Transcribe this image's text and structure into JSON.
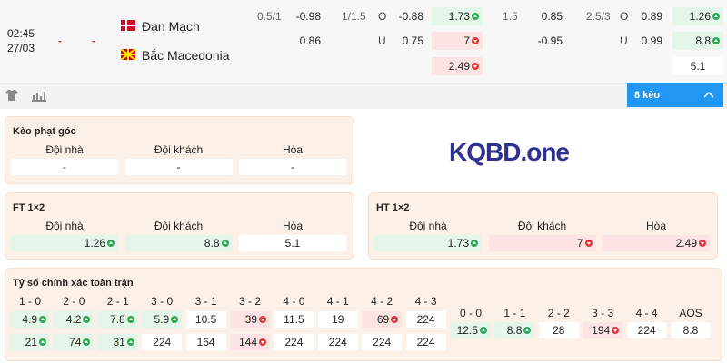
{
  "match": {
    "time": "02:45",
    "date": "27/03",
    "home_score": "-",
    "away_score": "-",
    "home_team": "Đan Mạch",
    "away_team": "Bắc Macedonia",
    "handicap": {
      "line": "0.5/1",
      "home": "-0.98",
      "away": "0.86"
    },
    "over_under": {
      "line": "1/1.5",
      "over_label": "O",
      "over": "-0.88",
      "under_label": "U",
      "under": "0.75"
    },
    "x12_a": [
      {
        "text": "1.73",
        "trend": "up"
      },
      {
        "text": "7",
        "trend": "down"
      },
      {
        "text": "2.49",
        "trend": "down"
      }
    ],
    "handicap_b": {
      "line": "1.5",
      "home": "0.85",
      "away": "-0.95"
    },
    "over_under_b": {
      "line": "2.5/3",
      "over_label": "O",
      "over": "0.89",
      "under_label": "U",
      "under": "0.99"
    },
    "x12_b": [
      {
        "text": "1.26",
        "trend": "up"
      },
      {
        "text": "8.8",
        "trend": "up"
      },
      {
        "text": "5.1"
      }
    ]
  },
  "more_button": "8 kèo",
  "logo": "KQBD.one",
  "corner": {
    "title": "Kèo phạt góc",
    "headers": [
      "Đội nhà",
      "Đội khách",
      "Hòa"
    ],
    "values": [
      {
        "text": "-"
      },
      {
        "text": "-"
      },
      {
        "text": "-"
      }
    ]
  },
  "ft": {
    "title": "FT 1×2",
    "headers": [
      "Đội nhà",
      "Đội khách",
      "Hòa"
    ],
    "values": [
      {
        "text": "1.26",
        "trend": "up"
      },
      {
        "text": "8.8",
        "trend": "up"
      },
      {
        "text": "5.1"
      }
    ]
  },
  "ht": {
    "title": "HT 1×2",
    "headers": [
      "Đội nhà",
      "Đội khách",
      "Hòa"
    ],
    "values": [
      {
        "text": "1.73",
        "trend": "up"
      },
      {
        "text": "7",
        "trend": "down"
      },
      {
        "text": "2.49",
        "trend": "down"
      }
    ]
  },
  "correct_score": {
    "title": "Tỷ số chính xác toàn trận",
    "columns": [
      {
        "score": "1 - 0",
        "values": [
          {
            "text": "4.9",
            "trend": "up"
          },
          {
            "text": "21",
            "trend": "up"
          }
        ]
      },
      {
        "score": "2 - 0",
        "values": [
          {
            "text": "4.2",
            "trend": "up"
          },
          {
            "text": "74",
            "trend": "up"
          }
        ]
      },
      {
        "score": "2 - 1",
        "values": [
          {
            "text": "7.8",
            "trend": "up"
          },
          {
            "text": "31",
            "trend": "up"
          }
        ]
      },
      {
        "score": "3 - 0",
        "values": [
          {
            "text": "5.9",
            "trend": "up"
          },
          {
            "text": "224"
          }
        ]
      },
      {
        "score": "3 - 1",
        "values": [
          {
            "text": "10.5"
          },
          {
            "text": "164"
          }
        ]
      },
      {
        "score": "3 - 2",
        "values": [
          {
            "text": "39",
            "trend": "down"
          },
          {
            "text": "144",
            "trend": "down"
          }
        ]
      },
      {
        "score": "4 - 0",
        "values": [
          {
            "text": "11.5"
          },
          {
            "text": "224"
          }
        ]
      },
      {
        "score": "4 - 1",
        "values": [
          {
            "text": "19"
          },
          {
            "text": "224"
          }
        ]
      },
      {
        "score": "4 - 2",
        "values": [
          {
            "text": "69",
            "trend": "down"
          },
          {
            "text": "224"
          }
        ]
      },
      {
        "score": "4 - 3",
        "values": [
          {
            "text": "224"
          },
          {
            "text": "224"
          }
        ]
      }
    ],
    "draws": [
      {
        "score": "0 - 0",
        "value": {
          "text": "12.5",
          "trend": "up"
        }
      },
      {
        "score": "1 - 1",
        "value": {
          "text": "8.8",
          "trend": "up"
        }
      },
      {
        "score": "2 - 2",
        "value": {
          "text": "28"
        }
      },
      {
        "score": "3 - 3",
        "value": {
          "text": "194",
          "trend": "down"
        }
      },
      {
        "score": "4 - 4",
        "value": {
          "text": "224"
        }
      },
      {
        "score": "AOS",
        "value": {
          "text": "8.8"
        }
      }
    ]
  }
}
